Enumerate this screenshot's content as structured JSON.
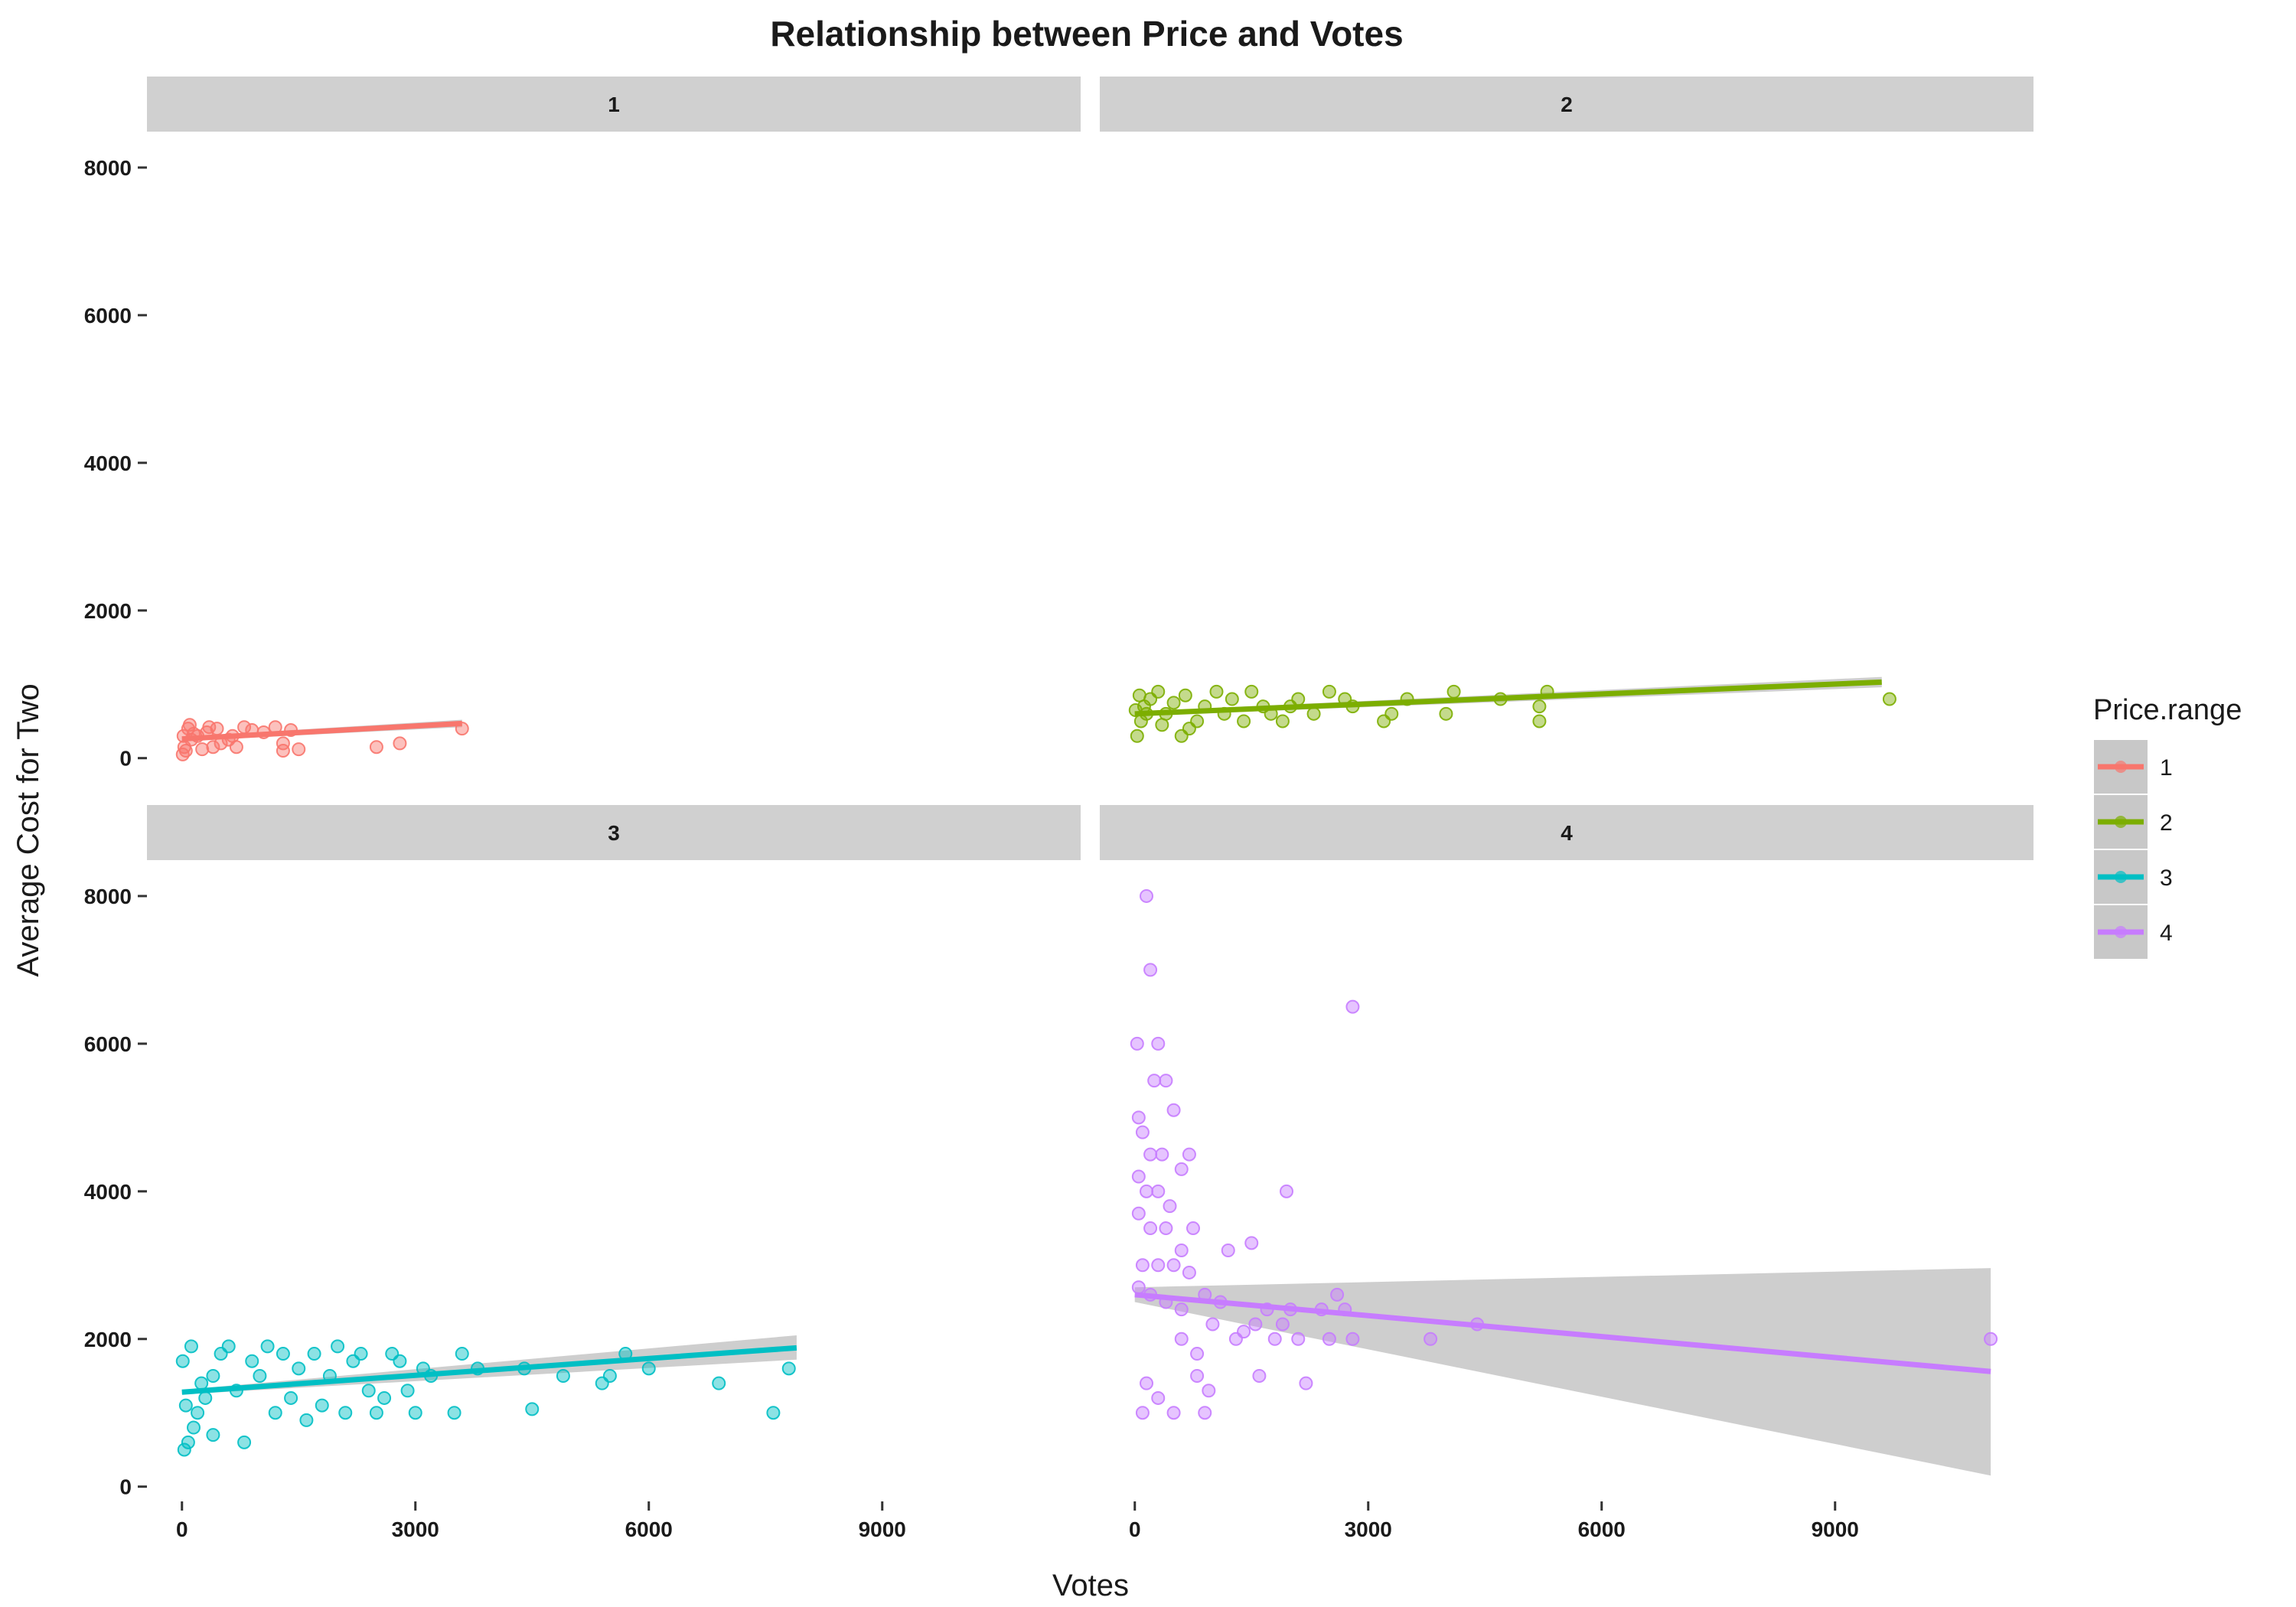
{
  "chart_data": {
    "type": "scatter",
    "title": "Relationship between Price and Votes",
    "xlabel": "Votes",
    "ylabel": "Average Cost for Two",
    "xlim": [
      -450,
      11550
    ],
    "ylim": [
      -200,
      8300
    ],
    "x_ticks": [
      0,
      3000,
      6000,
      9000
    ],
    "y_ticks": [
      0,
      2000,
      4000,
      6000,
      8000
    ],
    "grid": false,
    "legend": {
      "title": "Price.range",
      "position": "right",
      "entries": [
        "1",
        "2",
        "3",
        "4"
      ]
    },
    "facets": [
      {
        "label": "1",
        "series": "1",
        "color": "#F8766D",
        "trend": {
          "x0": 0,
          "y0": 260,
          "x1": 3600,
          "y1": 470
        },
        "band": {
          "upper": [
            290,
            520
          ],
          "lower": [
            230,
            420
          ]
        },
        "points": [
          [
            50,
            100
          ],
          [
            120,
            250
          ],
          [
            200,
            300
          ],
          [
            320,
            350
          ],
          [
            450,
            400
          ],
          [
            500,
            200
          ],
          [
            650,
            300
          ],
          [
            800,
            420
          ],
          [
            900,
            380
          ],
          [
            1050,
            350
          ],
          [
            1200,
            420
          ],
          [
            1300,
            100
          ],
          [
            1400,
            380
          ],
          [
            1500,
            120
          ],
          [
            1300,
            200
          ],
          [
            2500,
            150
          ],
          [
            2800,
            200
          ],
          [
            3600,
            400
          ],
          [
            700,
            150
          ],
          [
            600,
            250
          ],
          [
            400,
            150
          ],
          [
            350,
            420
          ],
          [
            260,
            120
          ],
          [
            150,
            330
          ],
          [
            80,
            400
          ],
          [
            30,
            150
          ],
          [
            20,
            300
          ],
          [
            10,
            50
          ],
          [
            100,
            450
          ]
        ]
      },
      {
        "label": "2",
        "series": "2",
        "color": "#7CAE00",
        "trend": {
          "x0": 0,
          "y0": 600,
          "x1": 9600,
          "y1": 1030
        },
        "band": {
          "upper": [
            630,
            1100
          ],
          "lower": [
            570,
            960
          ]
        },
        "points": [
          [
            30,
            300
          ],
          [
            80,
            500
          ],
          [
            120,
            700
          ],
          [
            200,
            800
          ],
          [
            300,
            900
          ],
          [
            400,
            600
          ],
          [
            500,
            750
          ],
          [
            650,
            850
          ],
          [
            800,
            500
          ],
          [
            900,
            700
          ],
          [
            1050,
            900
          ],
          [
            1150,
            600
          ],
          [
            1250,
            800
          ],
          [
            1400,
            500
          ],
          [
            1500,
            900
          ],
          [
            1650,
            700
          ],
          [
            1750,
            600
          ],
          [
            1900,
            500
          ],
          [
            2000,
            700
          ],
          [
            2100,
            800
          ],
          [
            2300,
            600
          ],
          [
            2500,
            900
          ],
          [
            2700,
            800
          ],
          [
            2800,
            700
          ],
          [
            3200,
            500
          ],
          [
            3300,
            600
          ],
          [
            3500,
            800
          ],
          [
            4000,
            600
          ],
          [
            4100,
            900
          ],
          [
            4700,
            800
          ],
          [
            5200,
            500
          ],
          [
            5300,
            900
          ],
          [
            5200,
            700
          ],
          [
            9700,
            800
          ],
          [
            600,
            300
          ],
          [
            700,
            400
          ],
          [
            350,
            450
          ],
          [
            150,
            600
          ],
          [
            60,
            850
          ],
          [
            10,
            650
          ]
        ]
      },
      {
        "label": "3",
        "series": "3",
        "color": "#00BFC4",
        "trend": {
          "x0": 0,
          "y0": 1280,
          "x1": 7900,
          "y1": 1880
        },
        "band": {
          "upper": [
            1310,
            2050
          ],
          "lower": [
            1250,
            1720
          ]
        },
        "points": [
          [
            30,
            500
          ],
          [
            80,
            600
          ],
          [
            150,
            800
          ],
          [
            200,
            1000
          ],
          [
            300,
            1200
          ],
          [
            400,
            1500
          ],
          [
            500,
            1800
          ],
          [
            600,
            1900
          ],
          [
            700,
            1300
          ],
          [
            800,
            600
          ],
          [
            900,
            1700
          ],
          [
            1000,
            1500
          ],
          [
            1100,
            1900
          ],
          [
            1200,
            1000
          ],
          [
            1300,
            1800
          ],
          [
            1400,
            1200
          ],
          [
            1500,
            1600
          ],
          [
            1600,
            900
          ],
          [
            1700,
            1800
          ],
          [
            1800,
            1100
          ],
          [
            1900,
            1500
          ],
          [
            2000,
            1900
          ],
          [
            2100,
            1000
          ],
          [
            2200,
            1700
          ],
          [
            2300,
            1800
          ],
          [
            2400,
            1300
          ],
          [
            2500,
            1000
          ],
          [
            2600,
            1200
          ],
          [
            2700,
            1800
          ],
          [
            2800,
            1700
          ],
          [
            2900,
            1300
          ],
          [
            3000,
            1000
          ],
          [
            3100,
            1600
          ],
          [
            3200,
            1500
          ],
          [
            3500,
            1000
          ],
          [
            3600,
            1800
          ],
          [
            3800,
            1600
          ],
          [
            4400,
            1600
          ],
          [
            4500,
            1050
          ],
          [
            4900,
            1500
          ],
          [
            5400,
            1400
          ],
          [
            5500,
            1500
          ],
          [
            5700,
            1800
          ],
          [
            6000,
            1600
          ],
          [
            6900,
            1400
          ],
          [
            7600,
            1000
          ],
          [
            7800,
            1600
          ],
          [
            400,
            700
          ],
          [
            250,
            1400
          ],
          [
            120,
            1900
          ],
          [
            50,
            1100
          ],
          [
            10,
            1700
          ]
        ]
      },
      {
        "label": "4",
        "series": "4",
        "color": "#C77CFF",
        "trend": {
          "x0": 0,
          "y0": 2600,
          "x1": 11000,
          "y1": 1560
        },
        "band": {
          "upper": [
            2700,
            2960
          ],
          "lower": [
            2500,
            150
          ]
        },
        "points": [
          [
            150,
            8000
          ],
          [
            200,
            7000
          ],
          [
            30,
            6000
          ],
          [
            300,
            6000
          ],
          [
            250,
            5500
          ],
          [
            400,
            5500
          ],
          [
            50,
            5000
          ],
          [
            500,
            5100
          ],
          [
            100,
            4800
          ],
          [
            200,
            4500
          ],
          [
            350,
            4500
          ],
          [
            600,
            4300
          ],
          [
            700,
            4500
          ],
          [
            50,
            4200
          ],
          [
            150,
            4000
          ],
          [
            300,
            4000
          ],
          [
            450,
            3800
          ],
          [
            50,
            3700
          ],
          [
            200,
            3500
          ],
          [
            400,
            3500
          ],
          [
            600,
            3200
          ],
          [
            750,
            3500
          ],
          [
            100,
            3000
          ],
          [
            300,
            3000
          ],
          [
            500,
            3000
          ],
          [
            700,
            2900
          ],
          [
            50,
            2700
          ],
          [
            200,
            2600
          ],
          [
            400,
            2500
          ],
          [
            600,
            2400
          ],
          [
            900,
            2600
          ],
          [
            1100,
            2500
          ],
          [
            1200,
            3200
          ],
          [
            1300,
            2000
          ],
          [
            1400,
            2100
          ],
          [
            1500,
            3300
          ],
          [
            1550,
            2200
          ],
          [
            1600,
            1500
          ],
          [
            1700,
            2400
          ],
          [
            1800,
            2000
          ],
          [
            1900,
            2200
          ],
          [
            1950,
            4000
          ],
          [
            2000,
            2400
          ],
          [
            2100,
            2000
          ],
          [
            2200,
            1400
          ],
          [
            2400,
            2400
          ],
          [
            2500,
            2000
          ],
          [
            2600,
            2600
          ],
          [
            2700,
            2400
          ],
          [
            2800,
            6500
          ],
          [
            2800,
            2000
          ],
          [
            3800,
            2000
          ],
          [
            4400,
            2200
          ],
          [
            11000,
            2000
          ],
          [
            800,
            1500
          ],
          [
            900,
            1000
          ],
          [
            950,
            1300
          ],
          [
            500,
            1000
          ],
          [
            300,
            1200
          ],
          [
            100,
            1000
          ],
          [
            150,
            1400
          ],
          [
            600,
            2000
          ],
          [
            800,
            1800
          ],
          [
            1000,
            2200
          ]
        ]
      }
    ]
  }
}
